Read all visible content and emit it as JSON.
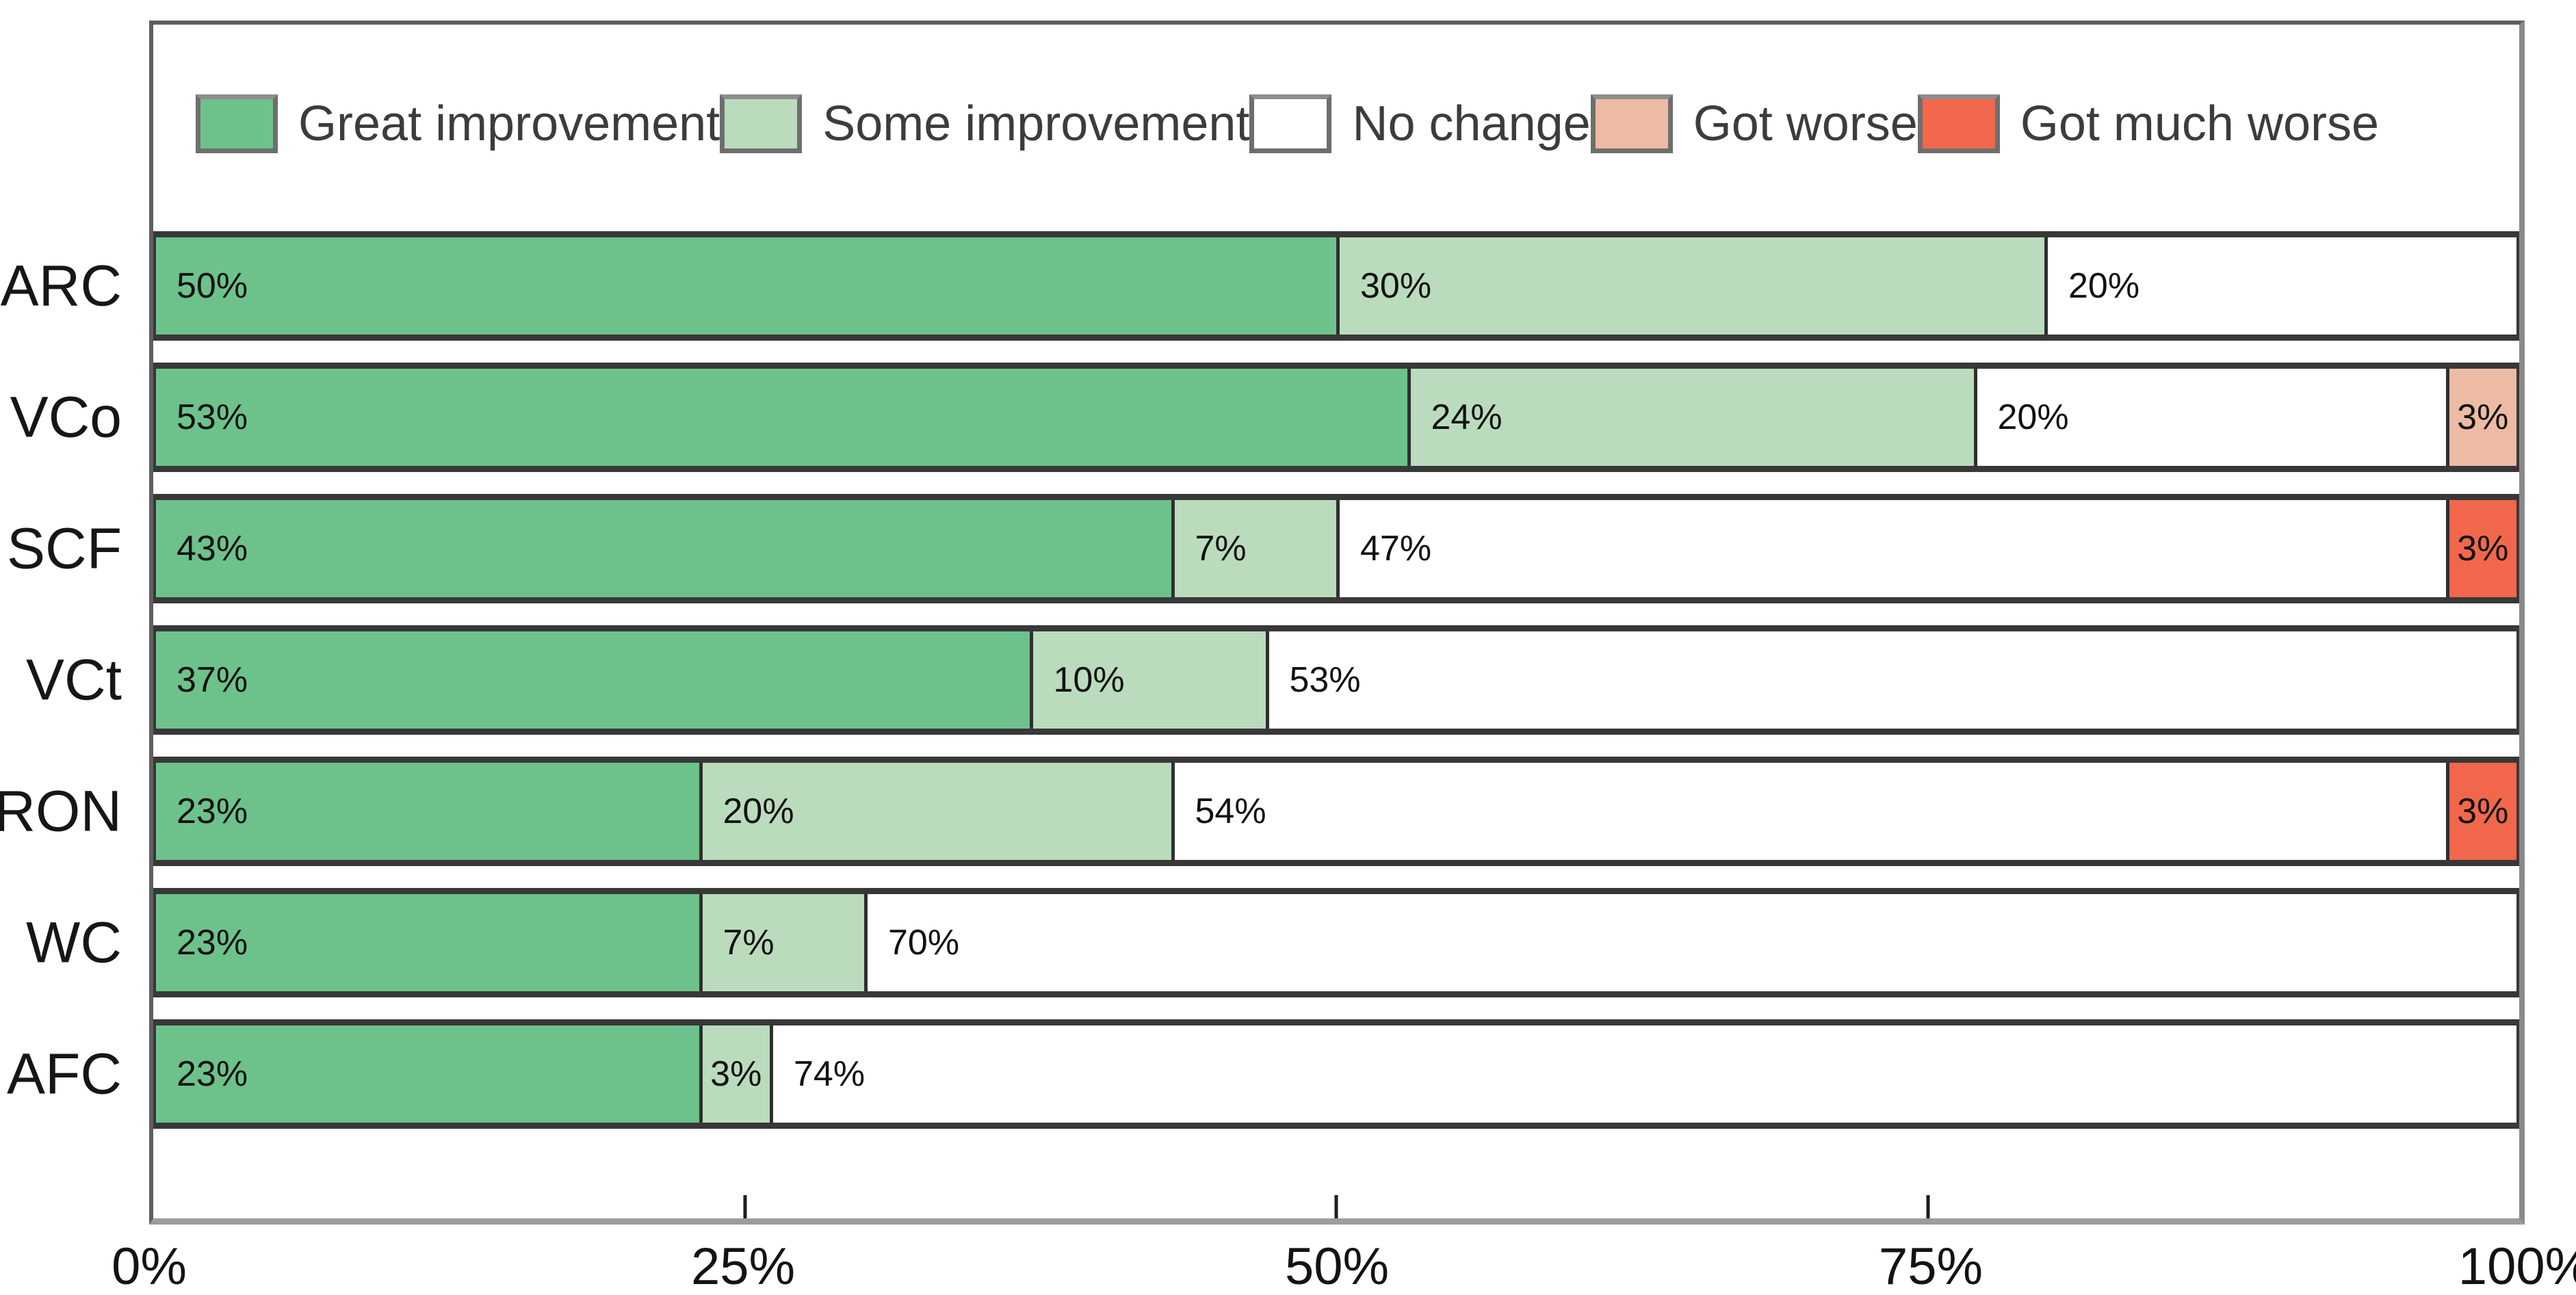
{
  "chart_data": {
    "type": "bar",
    "orientation": "horizontal",
    "stacked": true,
    "title": "",
    "xlabel": "",
    "ylabel": "",
    "categories": [
      "ARC",
      "VCo",
      "SCF",
      "VCt",
      "RON",
      "WC",
      "AFC"
    ],
    "series": [
      {
        "name": "Great improvement",
        "color": "#6dc28c",
        "values": [
          50,
          53,
          43,
          37,
          23,
          23,
          23
        ]
      },
      {
        "name": "Some improvement",
        "color": "#badcbd",
        "values": [
          30,
          24,
          7,
          10,
          20,
          7,
          3
        ]
      },
      {
        "name": "No change",
        "color": "#ffffff",
        "values": [
          20,
          20,
          47,
          53,
          54,
          70,
          74
        ]
      },
      {
        "name": "Got worse",
        "color": "#edbba4",
        "values": [
          0,
          3,
          0,
          0,
          0,
          0,
          0
        ]
      },
      {
        "name": "Got much worse",
        "color": "#f2674b",
        "values": [
          0,
          0,
          3,
          0,
          3,
          0,
          0
        ]
      }
    ],
    "data_label_format": "{value}%",
    "x_axis": {
      "range": [
        0,
        100
      ],
      "tick_labels": [
        "0%",
        "25%",
        "50%",
        "75%",
        "100%"
      ],
      "tick_values": [
        0,
        25,
        50,
        75,
        100
      ],
      "interior_tick_values": [
        25,
        50,
        75
      ]
    },
    "legend_position": "top",
    "grid": false
  }
}
